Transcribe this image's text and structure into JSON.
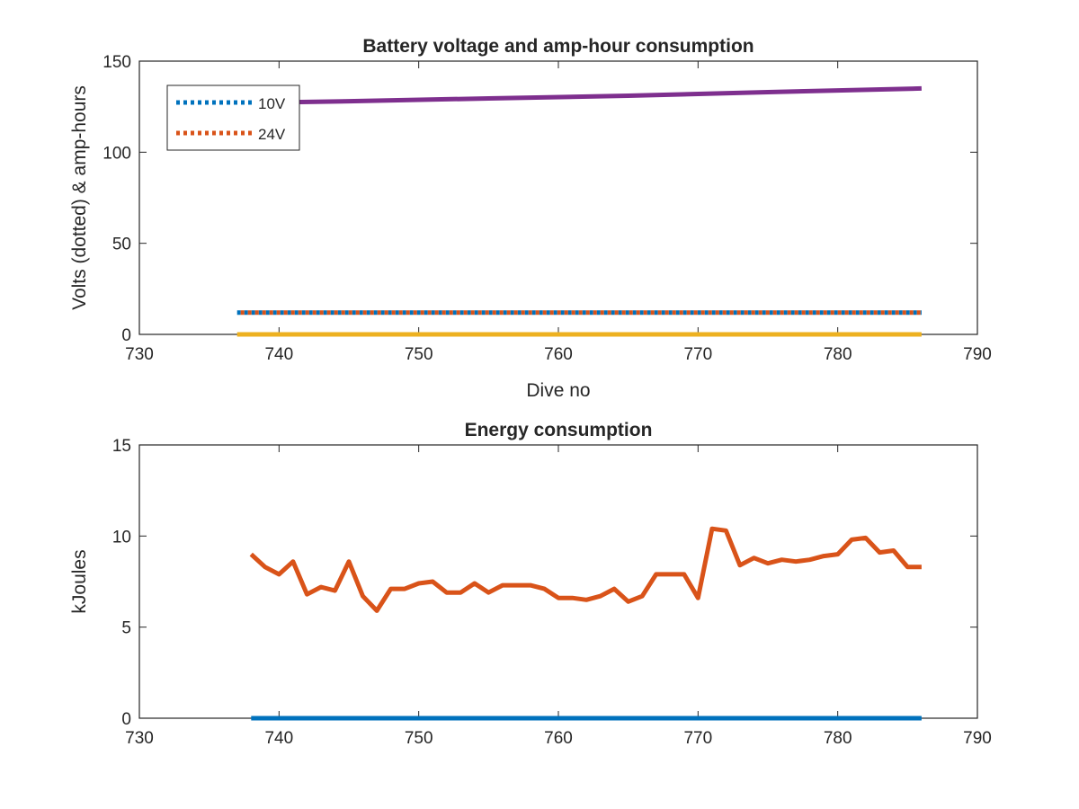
{
  "chart_data": [
    {
      "type": "line",
      "title": "Battery voltage and amp-hour consumption",
      "xlabel": "Dive no",
      "ylabel": "Volts (dotted) & amp-hours",
      "xlim": [
        730,
        790
      ],
      "ylim": [
        0,
        150
      ],
      "xticks": [
        "730",
        "740",
        "750",
        "760",
        "770",
        "780",
        "790"
      ],
      "yticks": [
        "0",
        "50",
        "100",
        "150"
      ],
      "grid": false,
      "legend_position": "top-left",
      "series": [
        {
          "name": "10V",
          "style": "dotted",
          "color": "#0072BD",
          "x": [
            737,
            786
          ],
          "y": [
            12,
            12
          ]
        },
        {
          "name": "24V",
          "style": "dotted",
          "color": "#D95319",
          "x": [
            737,
            786
          ],
          "y": [
            12,
            12
          ]
        },
        {
          "style": "solid",
          "color": "#EDB120",
          "x": [
            737,
            786
          ],
          "y": [
            0,
            0
          ]
        },
        {
          "style": "solid",
          "color": "#7E2F8E",
          "x": [
            737,
            745,
            755,
            765,
            775,
            786
          ],
          "y": [
            127,
            128,
            129.5,
            131,
            133,
            135
          ]
        }
      ]
    },
    {
      "type": "line",
      "title": "Energy consumption",
      "xlabel": "",
      "ylabel": "kJoules",
      "xlim": [
        730,
        790
      ],
      "ylim": [
        0,
        15
      ],
      "xticks": [
        "730",
        "740",
        "750",
        "760",
        "770",
        "780",
        "790"
      ],
      "yticks": [
        "0",
        "5",
        "10",
        "15"
      ],
      "grid": false,
      "series": [
        {
          "style": "solid",
          "color": "#0072BD",
          "x": [
            738,
            786
          ],
          "y": [
            0,
            0
          ]
        },
        {
          "style": "solid",
          "color": "#D95319",
          "x": [
            738,
            739,
            740,
            741,
            742,
            743,
            744,
            745,
            746,
            747,
            748,
            749,
            750,
            751,
            752,
            753,
            754,
            755,
            756,
            757,
            758,
            759,
            760,
            761,
            762,
            763,
            764,
            765,
            766,
            767,
            768,
            769,
            770,
            771,
            772,
            773,
            774,
            775,
            776,
            777,
            778,
            779,
            780,
            781,
            782,
            783,
            784,
            785,
            786
          ],
          "y": [
            9.0,
            8.3,
            7.9,
            8.6,
            6.8,
            7.2,
            7.0,
            8.6,
            6.7,
            5.9,
            7.1,
            7.1,
            7.4,
            7.5,
            6.9,
            6.9,
            7.4,
            6.9,
            7.3,
            7.3,
            7.3,
            7.1,
            6.6,
            6.6,
            6.5,
            6.7,
            7.1,
            6.4,
            6.7,
            7.9,
            7.9,
            7.9,
            6.6,
            10.4,
            10.3,
            8.4,
            8.8,
            8.5,
            8.7,
            8.6,
            8.7,
            8.9,
            9.0,
            9.8,
            9.9,
            9.1,
            9.2,
            8.3,
            8.3
          ]
        }
      ]
    }
  ]
}
